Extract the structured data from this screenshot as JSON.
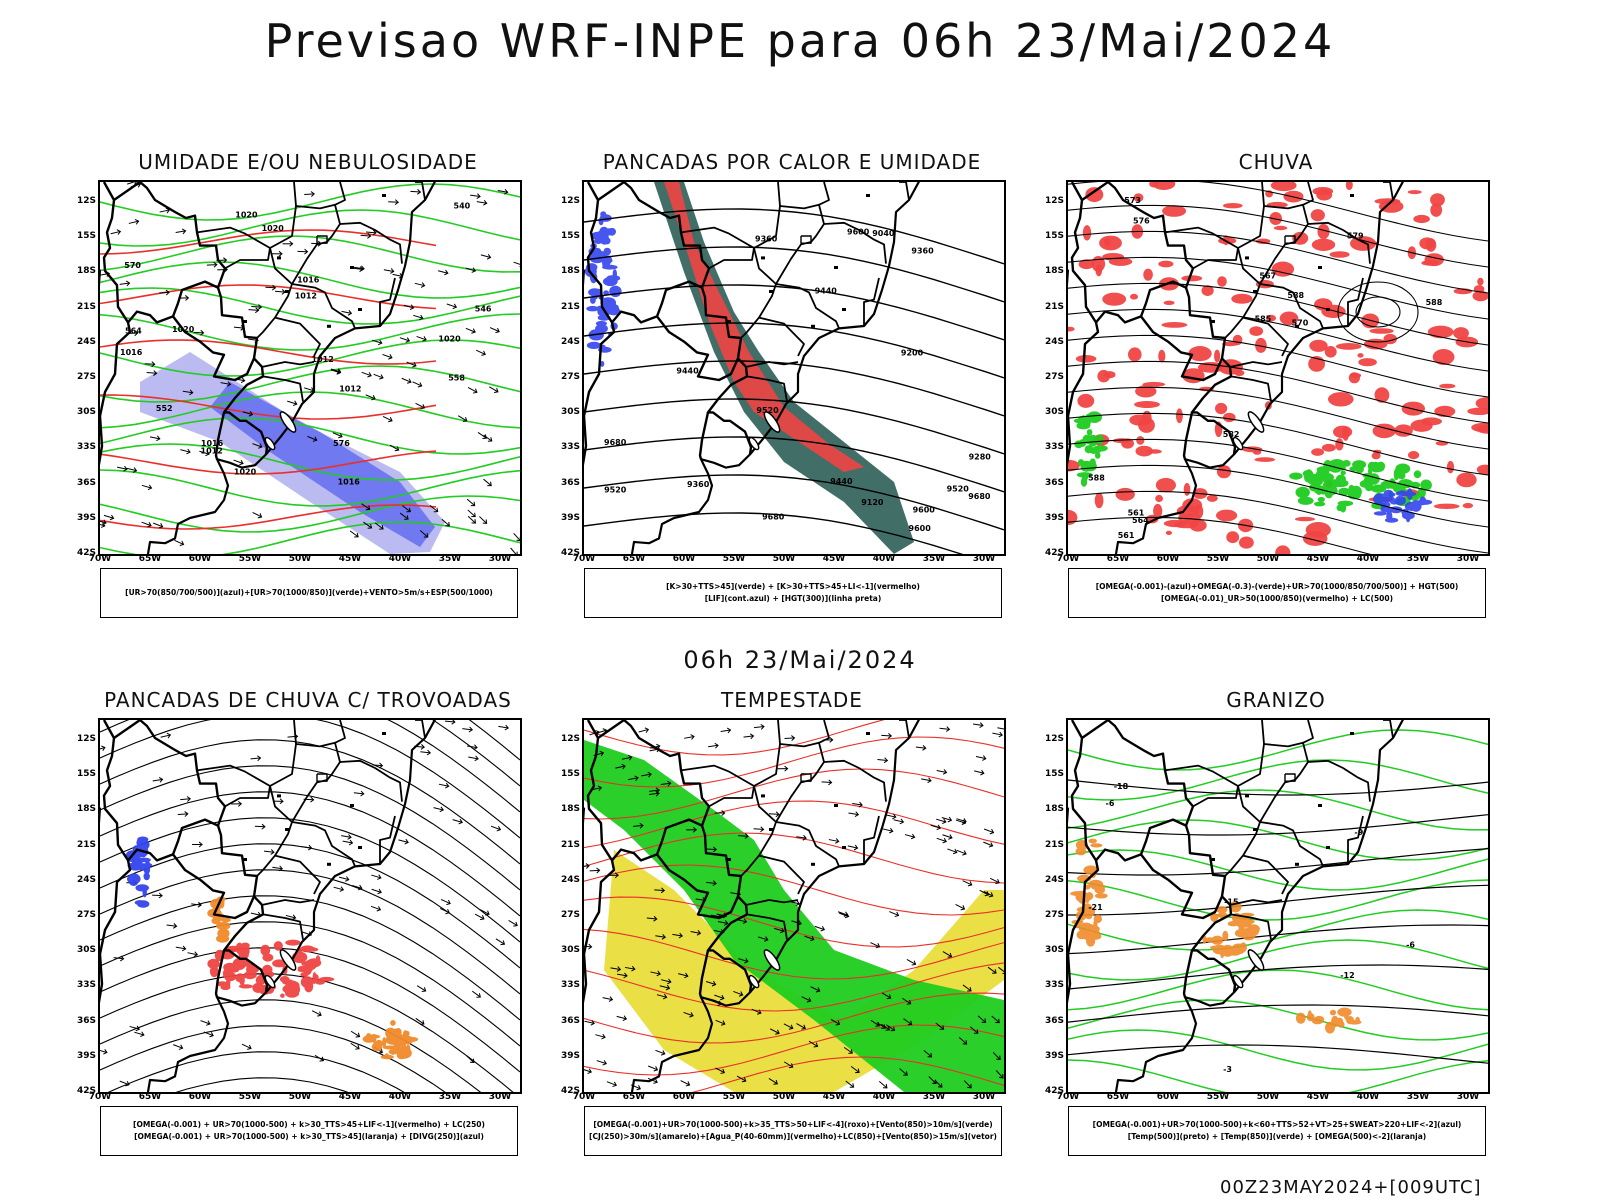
{
  "header": {
    "title": "Previsao WRF-INPE  para 06h 23/Mai/2024",
    "mid_title": "06h 23/Mai/2024",
    "footer": "00Z23MAY2024+[009UTC]"
  },
  "axes": {
    "lat_labels": [
      "12S",
      "15S",
      "18S",
      "21S",
      "24S",
      "27S",
      "30S",
      "33S",
      "36S",
      "39S",
      "42S"
    ],
    "lon_labels": [
      "70W",
      "65W",
      "60W",
      "55W",
      "50W",
      "45W",
      "40W",
      "35W",
      "30W"
    ]
  },
  "colors": {
    "contour_red": "#e8302a",
    "contour_green": "#22cc22",
    "fill_red": "#f04444",
    "fill_green": "#1fcc1f",
    "fill_blue": "#3344ee",
    "fill_lavender": "#aaaaee",
    "fill_darkteal": "#2e5e58",
    "fill_yellow": "#e8dc30",
    "fill_orange": "#f08a2a",
    "border_black": "#000000"
  },
  "panels": [
    {
      "title": "UMIDADE E/OU NEBULOSIDADE",
      "legend": [
        "[UR>70(850/700/500)](azul)+[UR>70(1000/850)](verde)+VENTO>5m/s+ESP(500/1000)"
      ],
      "contour_labels": [
        "1016",
        "1020",
        "1020",
        "1012",
        "1012",
        "1016",
        "1020",
        "1016",
        "1020",
        "1012",
        "1012",
        "1016",
        "1020",
        "570",
        "576",
        "564",
        "558",
        "552",
        "546",
        "540"
      ]
    },
    {
      "title": "PANCADAS POR CALOR E UMIDADE",
      "legend": [
        "[K>30+TTS>45](verde) + [K>30+TTS>45+LI<-1](vermelho)",
        "[LIF](cont.azul) + [HGT(300)](linha preta)"
      ],
      "contour_labels": [
        "9680",
        "9600",
        "9520",
        "9440",
        "9360",
        "9280",
        "9200",
        "9120",
        "9040",
        "9680",
        "9680",
        "9600",
        "9520",
        "9440",
        "9360",
        "9600",
        "9520",
        "9440",
        "9360"
      ]
    },
    {
      "title": "CHUVA",
      "legend": [
        "[OMEGA(-0.001)-(azul)+OMEGA(-0.3)-(verde)+UR>70(1000/850/700/500)] + HGT(500)",
        "[OMEGA(-0.01)_UR>50(1000/850)(vermelho) + LC(500)"
      ],
      "contour_labels": [
        "588",
        "588",
        "585",
        "582",
        "579",
        "576",
        "573",
        "570",
        "567",
        "564",
        "561",
        "561",
        "588"
      ]
    },
    {
      "title": "PANCADAS DE CHUVA C/ TROVOADAS",
      "legend": [
        "[OMEGA(-0.001) + UR>70(1000-500) + k>30_TTS>45+LIF<-1](vermelho) + LC(250)",
        "[OMEGA(-0.001) + UR>70(1000-500) + k>30_TTS>45](laranja) + [DIVG(250)](azul)"
      ],
      "contour_labels": []
    },
    {
      "title": "TEMPESTADE",
      "legend": [
        "[OMEGA(-0.001)+UR>70(1000-500)+k>35_TTS>50+LIF<-4](roxo)+[Vento(850)>10m/s](verde)",
        "[CJ(250)>30m/s](amarelo)+[Agua_P(40-60mm)](vermelho)+LC(850)+[Vento(850)>15m/s](vetor)"
      ],
      "contour_labels": []
    },
    {
      "title": "GRANIZO",
      "legend": [
        "[OMEGA(-0.001)+UR>70(1000-500)+k<60+TTS>52+VT>25+SWEAT>220+LIF<-2](azul)",
        "[Temp(500)](preto) + [Temp(850)](verde) + [OMEGA(500)<-2](laranja)"
      ],
      "contour_labels": [
        "-21",
        "-18",
        "-15",
        "-12",
        "-9",
        "-6",
        "-3",
        "-6"
      ]
    }
  ]
}
